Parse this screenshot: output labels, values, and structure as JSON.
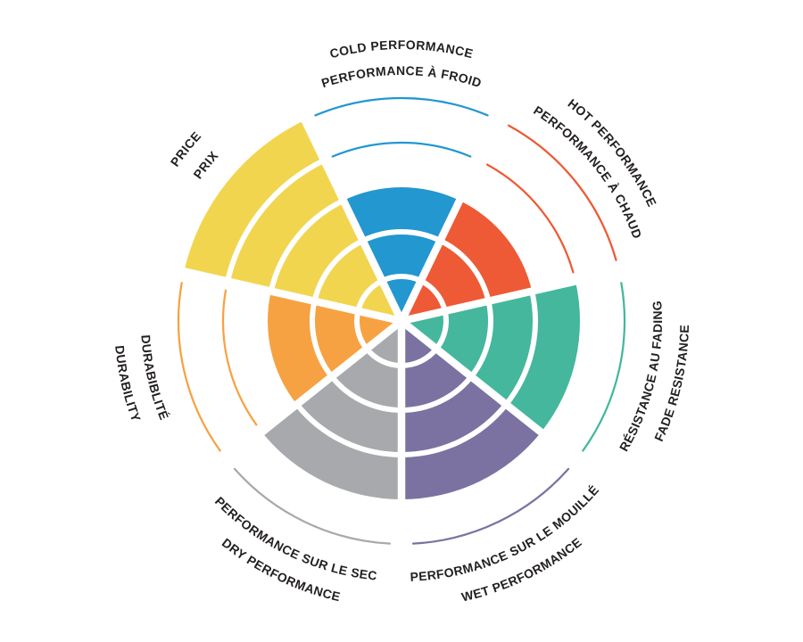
{
  "chart_data": {
    "type": "polar-sector",
    "description": "Seven-sector radial rating chart (coxcomb style), each sector filled to its rating level out of 5 rings; unfilled ring levels drawn as thin colored arcs; bilingual curved labels around the outside",
    "max_level": 5,
    "sector_count": 7,
    "start_sector_angle_deg": 0,
    "clockwise": true,
    "background": "#FFFFFF",
    "text_color": "#231F20",
    "ring_gap_color": "#FFFFFF",
    "categories": [
      {
        "id": "cold",
        "label_en": "COLD PERFORMANCE",
        "label_fr": "PERFORMANCE À FROID",
        "value": 3,
        "color": "#2297D0",
        "label_style": "outward"
      },
      {
        "id": "hot",
        "label_en": "HOT PERFORMANCE",
        "label_fr": "PERFORMANCE À CHAUD",
        "value": 3,
        "color": "#EE5A35",
        "label_style": "outward"
      },
      {
        "id": "fade",
        "label_en": "FADE RESISTANCE",
        "label_fr": "RÉSISTANCE AU FADING",
        "value": 4,
        "color": "#44B79C",
        "label_style": "inward"
      },
      {
        "id": "wet",
        "label_en": "WET PERFORMANCE",
        "label_fr": "PERFORMANCE SUR LE MOUILLÉ",
        "value": 4,
        "color": "#7B72A1",
        "label_style": "inward"
      },
      {
        "id": "dry",
        "label_en": "DRY PERFORMANCE",
        "label_fr": "PERFORMANCE SUR LE SEC",
        "value": 4,
        "color": "#A7A9AC",
        "label_style": "inward"
      },
      {
        "id": "durability",
        "label_en": "DURABILITY",
        "label_fr": "DURABIBLITÉ",
        "value": 3,
        "color": "#F7A242",
        "label_style": "inward"
      },
      {
        "id": "price",
        "label_en": "PRICE",
        "label_fr": "PRIX",
        "value": 5,
        "color": "#F1D54F",
        "label_style": "outward"
      }
    ]
  }
}
